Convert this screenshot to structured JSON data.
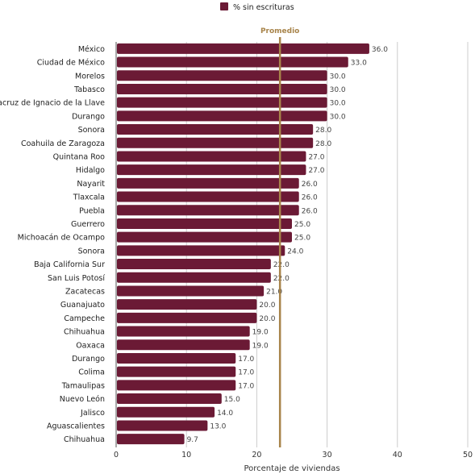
{
  "chart_data": {
    "type": "bar",
    "orientation": "horizontal",
    "legend": {
      "label": "% sin escrituras",
      "position": "top"
    },
    "series": [
      {
        "name": "% sin escrituras",
        "color": "#6b1a35",
        "categories": [
          "México",
          "Ciudad de México",
          "Morelos",
          "Tabasco",
          "Veracruz de Ignacio de la Llave",
          "Durango",
          "Sonora",
          "Coahuila de Zaragoza",
          "Quintana Roo",
          "Hidalgo",
          "Nayarit",
          "Tlaxcala",
          "Puebla",
          "Guerrero",
          "Michoacán de Ocampo",
          "Sonora",
          "Baja California Sur",
          "San Luis Potosí",
          "Zacatecas",
          "Guanajuato",
          "Campeche",
          "Chihuahua",
          "Oaxaca",
          "Durango",
          "Colima",
          "Tamaulipas",
          "Nuevo León",
          "Jalisco",
          "Aguascalientes",
          "Chihuahua"
        ],
        "values": [
          36.0,
          33.0,
          30.0,
          30.0,
          30.0,
          30.0,
          28.0,
          28.0,
          27.0,
          27.0,
          26.0,
          26.0,
          26.0,
          25.0,
          25.0,
          24.0,
          22.0,
          22.0,
          21.0,
          20.0,
          20.0,
          19.0,
          19.0,
          17.0,
          17.0,
          17.0,
          15.0,
          14.0,
          13.0,
          9.7
        ],
        "value_labels": [
          "36.0",
          "33.0",
          "30.0",
          "30.0",
          "30.0",
          "30.0",
          "28.0",
          "28.0",
          "27.0",
          "27.0",
          "26.0",
          "26.0",
          "26.0",
          "25.0",
          "25.0",
          "24.0",
          "22.0",
          "22.0",
          "21.0",
          "20.0",
          "20.0",
          "19.0",
          "19.0",
          "17.0",
          "17.0",
          "17.0",
          "15.0",
          "14.0",
          "13.0",
          "9.7"
        ]
      }
    ],
    "xlabel": "Porcentaje de viviendas",
    "xlim": [
      0,
      50
    ],
    "xticks": [
      0,
      10,
      20,
      30,
      40,
      50
    ],
    "grid": true,
    "reference_line": {
      "label": "Promedio",
      "value": 23.3,
      "color": "#a8844a"
    }
  }
}
